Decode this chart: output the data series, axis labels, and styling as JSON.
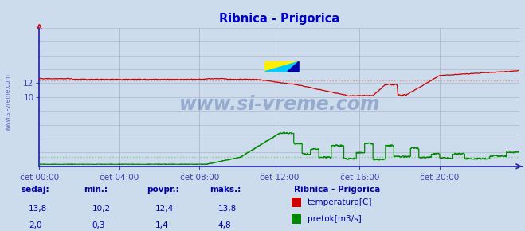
{
  "title": "Ribnica - Prigorica",
  "title_color": "#0000cc",
  "bg_color": "#ccdcec",
  "grid_color_major": "#b0b8c8",
  "grid_color_minor": "#d0d8e8",
  "x_label_color": "#4040b0",
  "y_label_color": "#4040b0",
  "axis_color": "#2020aa",
  "temp_color": "#cc0000",
  "flow_color": "#008800",
  "avg_temp_color": "#ee8888",
  "avg_flow_color": "#88cc88",
  "watermark_color": "#1a3a8a",
  "sidebar_text_color": "#0000aa",
  "x_ticks": [
    "čet 00:00",
    "čet 04:00",
    "čet 08:00",
    "čet 12:00",
    "čet 16:00",
    "čet 20:00"
  ],
  "x_tick_positions": [
    0,
    96,
    192,
    288,
    384,
    480
  ],
  "ylim": [
    0,
    20
  ],
  "xlim": [
    0,
    576
  ],
  "avg_temp": 12.4,
  "avg_flow": 1.4,
  "legend_title": "Ribnica - Prigorica",
  "legend_temp_label": "temperatura[C]",
  "legend_flow_label": "pretok[m3/s]",
  "table_headers": [
    "sedaj:",
    "min.:",
    "povpr.:",
    "maks.:"
  ],
  "table_temp_values": [
    "13,8",
    "10,2",
    "12,4",
    "13,8"
  ],
  "table_flow_values": [
    "2,0",
    "0,3",
    "1,4",
    "4,8"
  ]
}
